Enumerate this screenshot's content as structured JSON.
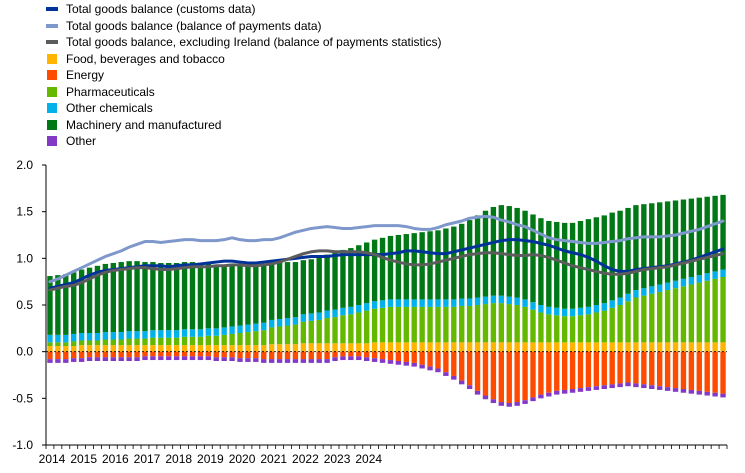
{
  "chart_data": {
    "type": "bar",
    "stacked": true,
    "x_labels": [
      "2014",
      "2015",
      "2016",
      "2017",
      "2018",
      "2019",
      "2020",
      "2021",
      "2022",
      "2023",
      "2024"
    ],
    "quarters_per_year": 4,
    "ylim": [
      -1.0,
      2.0
    ],
    "yticks": [
      "2.0",
      "1.5",
      "1.0",
      "0.5",
      "0.0",
      "-0.5",
      "-1.0"
    ],
    "ytick_values": [
      2.0,
      1.5,
      1.0,
      0.5,
      0.0,
      -0.5,
      -1.0
    ],
    "grid": false,
    "legend_position": "top-left",
    "bar_series": [
      {
        "name": "Food, beverages and tobacco",
        "color": "#ffb400",
        "values": [
          0.06,
          0.06,
          0.06,
          0.06,
          0.07,
          0.07,
          0.07,
          0.07,
          0.07,
          0.07,
          0.07,
          0.07,
          0.07,
          0.07,
          0.07,
          0.07,
          0.07,
          0.07,
          0.07,
          0.07,
          0.07,
          0.07,
          0.07,
          0.07,
          0.07,
          0.07,
          0.07,
          0.07,
          0.08,
          0.08,
          0.08,
          0.08,
          0.09,
          0.09,
          0.09,
          0.09,
          0.09,
          0.09,
          0.09,
          0.09,
          0.09,
          0.1,
          0.1,
          0.1,
          0.1,
          0.1,
          0.1,
          0.1,
          0.1,
          0.1,
          0.1,
          0.1,
          0.1,
          0.1,
          0.1,
          0.1,
          0.1,
          0.1,
          0.1,
          0.1,
          0.1,
          0.1,
          0.1,
          0.1,
          0.1,
          0.1,
          0.1,
          0.1,
          0.1,
          0.1,
          0.1,
          0.1,
          0.1,
          0.1,
          0.1,
          0.1,
          0.1,
          0.1,
          0.1,
          0.1,
          0.1,
          0.1,
          0.1,
          0.1,
          0.1,
          0.1
        ]
      },
      {
        "name": "Energy",
        "color": "#ff4b00",
        "values": [
          -0.08,
          -0.08,
          -0.08,
          -0.07,
          -0.07,
          -0.06,
          -0.06,
          -0.06,
          -0.06,
          -0.06,
          -0.06,
          -0.06,
          -0.05,
          -0.05,
          -0.05,
          -0.05,
          -0.05,
          -0.05,
          -0.05,
          -0.05,
          -0.05,
          -0.06,
          -0.06,
          -0.06,
          -0.07,
          -0.07,
          -0.07,
          -0.08,
          -0.08,
          -0.08,
          -0.08,
          -0.08,
          -0.08,
          -0.08,
          -0.08,
          -0.08,
          -0.06,
          -0.05,
          -0.05,
          -0.05,
          -0.06,
          -0.07,
          -0.08,
          -0.09,
          -0.1,
          -0.11,
          -0.12,
          -0.14,
          -0.16,
          -0.18,
          -0.22,
          -0.26,
          -0.31,
          -0.36,
          -0.42,
          -0.47,
          -0.51,
          -0.54,
          -0.55,
          -0.54,
          -0.52,
          -0.49,
          -0.46,
          -0.44,
          -0.42,
          -0.41,
          -0.4,
          -0.39,
          -0.38,
          -0.37,
          -0.36,
          -0.35,
          -0.34,
          -0.33,
          -0.34,
          -0.35,
          -0.36,
          -0.37,
          -0.38,
          -0.39,
          -0.4,
          -0.41,
          -0.42,
          -0.43,
          -0.44,
          -0.45
        ]
      },
      {
        "name": "Pharmaceuticals",
        "color": "#65b800",
        "values": [
          0.04,
          0.04,
          0.04,
          0.05,
          0.05,
          0.05,
          0.05,
          0.06,
          0.06,
          0.06,
          0.07,
          0.07,
          0.07,
          0.08,
          0.08,
          0.08,
          0.08,
          0.09,
          0.09,
          0.09,
          0.1,
          0.1,
          0.11,
          0.12,
          0.13,
          0.14,
          0.15,
          0.16,
          0.18,
          0.19,
          0.2,
          0.21,
          0.23,
          0.24,
          0.25,
          0.27,
          0.28,
          0.3,
          0.31,
          0.33,
          0.35,
          0.36,
          0.37,
          0.38,
          0.38,
          0.38,
          0.38,
          0.38,
          0.38,
          0.38,
          0.38,
          0.38,
          0.39,
          0.39,
          0.4,
          0.41,
          0.42,
          0.42,
          0.41,
          0.4,
          0.38,
          0.35,
          0.32,
          0.3,
          0.29,
          0.28,
          0.28,
          0.29,
          0.3,
          0.32,
          0.34,
          0.37,
          0.4,
          0.44,
          0.48,
          0.5,
          0.52,
          0.54,
          0.56,
          0.58,
          0.6,
          0.62,
          0.64,
          0.66,
          0.68,
          0.7
        ]
      },
      {
        "name": "Other chemicals",
        "color": "#00b1ea",
        "values": [
          0.08,
          0.08,
          0.08,
          0.08,
          0.08,
          0.08,
          0.08,
          0.08,
          0.08,
          0.08,
          0.08,
          0.08,
          0.08,
          0.08,
          0.08,
          0.08,
          0.08,
          0.08,
          0.08,
          0.08,
          0.08,
          0.08,
          0.08,
          0.08,
          0.08,
          0.08,
          0.08,
          0.08,
          0.08,
          0.08,
          0.08,
          0.08,
          0.08,
          0.08,
          0.08,
          0.08,
          0.08,
          0.08,
          0.08,
          0.08,
          0.08,
          0.08,
          0.08,
          0.08,
          0.08,
          0.08,
          0.08,
          0.08,
          0.08,
          0.08,
          0.08,
          0.08,
          0.08,
          0.08,
          0.08,
          0.08,
          0.08,
          0.08,
          0.08,
          0.08,
          0.08,
          0.08,
          0.08,
          0.08,
          0.08,
          0.08,
          0.08,
          0.08,
          0.08,
          0.08,
          0.08,
          0.08,
          0.08,
          0.08,
          0.08,
          0.08,
          0.08,
          0.08,
          0.08,
          0.08,
          0.08,
          0.08,
          0.08,
          0.08,
          0.08,
          0.08
        ]
      },
      {
        "name": "Machinery and manufactured",
        "color": "#007816",
        "values": [
          0.63,
          0.64,
          0.65,
          0.66,
          0.68,
          0.7,
          0.72,
          0.73,
          0.74,
          0.75,
          0.75,
          0.75,
          0.74,
          0.73,
          0.72,
          0.72,
          0.72,
          0.72,
          0.72,
          0.71,
          0.7,
          0.68,
          0.66,
          0.65,
          0.64,
          0.63,
          0.63,
          0.63,
          0.62,
          0.61,
          0.6,
          0.59,
          0.58,
          0.58,
          0.59,
          0.6,
          0.61,
          0.62,
          0.63,
          0.64,
          0.65,
          0.66,
          0.67,
          0.68,
          0.69,
          0.7,
          0.71,
          0.72,
          0.73,
          0.74,
          0.76,
          0.78,
          0.8,
          0.84,
          0.88,
          0.92,
          0.95,
          0.97,
          0.97,
          0.96,
          0.95,
          0.94,
          0.93,
          0.92,
          0.92,
          0.92,
          0.92,
          0.93,
          0.94,
          0.94,
          0.94,
          0.94,
          0.93,
          0.92,
          0.91,
          0.9,
          0.89,
          0.88,
          0.87,
          0.86,
          0.85,
          0.84,
          0.83,
          0.82,
          0.81,
          0.8
        ]
      },
      {
        "name": "Other",
        "color": "#8139c6",
        "values": [
          -0.04,
          -0.04,
          -0.04,
          -0.04,
          -0.04,
          -0.04,
          -0.04,
          -0.04,
          -0.04,
          -0.04,
          -0.04,
          -0.04,
          -0.04,
          -0.04,
          -0.04,
          -0.04,
          -0.04,
          -0.04,
          -0.04,
          -0.04,
          -0.04,
          -0.04,
          -0.04,
          -0.04,
          -0.04,
          -0.04,
          -0.04,
          -0.04,
          -0.04,
          -0.04,
          -0.04,
          -0.04,
          -0.04,
          -0.04,
          -0.04,
          -0.04,
          -0.04,
          -0.04,
          -0.04,
          -0.04,
          -0.04,
          -0.04,
          -0.04,
          -0.04,
          -0.04,
          -0.04,
          -0.04,
          -0.04,
          -0.04,
          -0.04,
          -0.04,
          -0.04,
          -0.04,
          -0.04,
          -0.04,
          -0.04,
          -0.04,
          -0.04,
          -0.04,
          -0.04,
          -0.04,
          -0.04,
          -0.04,
          -0.04,
          -0.04,
          -0.04,
          -0.04,
          -0.04,
          -0.04,
          -0.04,
          -0.04,
          -0.04,
          -0.04,
          -0.04,
          -0.04,
          -0.04,
          -0.04,
          -0.04,
          -0.04,
          -0.04,
          -0.04,
          -0.04,
          -0.04,
          -0.04,
          -0.04,
          -0.04
        ]
      }
    ],
    "line_series": [
      {
        "name": "Total goods balance (customs data)",
        "color": "#003299",
        "values": [
          0.68,
          0.7,
          0.72,
          0.74,
          0.78,
          0.82,
          0.85,
          0.87,
          0.88,
          0.89,
          0.9,
          0.91,
          0.92,
          0.92,
          0.92,
          0.91,
          0.92,
          0.93,
          0.93,
          0.94,
          0.95,
          0.96,
          0.97,
          0.97,
          0.96,
          0.95,
          0.95,
          0.96,
          0.97,
          0.98,
          0.99,
          1.0,
          1.01,
          1.02,
          1.02,
          1.02,
          1.03,
          1.04,
          1.04,
          1.04,
          1.04,
          1.04,
          1.04,
          1.05,
          1.06,
          1.08,
          1.08,
          1.07,
          1.06,
          1.05,
          1.05,
          1.07,
          1.09,
          1.11,
          1.13,
          1.15,
          1.17,
          1.19,
          1.2,
          1.2,
          1.19,
          1.18,
          1.16,
          1.14,
          1.11,
          1.08,
          1.06,
          1.04,
          1.01,
          0.97,
          0.92,
          0.88,
          0.86,
          0.86,
          0.88,
          0.89,
          0.9,
          0.91,
          0.92,
          0.94,
          0.96,
          0.98,
          1.01,
          1.04,
          1.07,
          1.1
        ]
      },
      {
        "name": "Total goods balance (balance of payments data)",
        "color": "#7f98cc",
        "values": [
          0.75,
          0.78,
          0.82,
          0.86,
          0.9,
          0.94,
          0.98,
          1.02,
          1.05,
          1.08,
          1.12,
          1.15,
          1.18,
          1.18,
          1.17,
          1.18,
          1.19,
          1.2,
          1.2,
          1.19,
          1.19,
          1.19,
          1.2,
          1.22,
          1.2,
          1.19,
          1.19,
          1.2,
          1.2,
          1.22,
          1.25,
          1.28,
          1.3,
          1.32,
          1.33,
          1.34,
          1.33,
          1.32,
          1.32,
          1.33,
          1.34,
          1.35,
          1.35,
          1.35,
          1.35,
          1.34,
          1.32,
          1.31,
          1.31,
          1.33,
          1.36,
          1.38,
          1.4,
          1.43,
          1.44,
          1.45,
          1.44,
          1.41,
          1.39,
          1.36,
          1.34,
          1.3,
          1.26,
          1.22,
          1.2,
          1.19,
          1.18,
          1.17,
          1.16,
          1.16,
          1.17,
          1.18,
          1.19,
          1.21,
          1.22,
          1.23,
          1.23,
          1.23,
          1.24,
          1.25,
          1.27,
          1.29,
          1.31,
          1.34,
          1.37,
          1.4
        ]
      },
      {
        "name": "Total goods balance, excluding Ireland (balance of payments statistics)",
        "color": "#5c5c5c",
        "values": [
          0.66,
          0.68,
          0.7,
          0.71,
          0.74,
          0.78,
          0.82,
          0.85,
          0.87,
          0.88,
          0.89,
          0.9,
          0.9,
          0.89,
          0.88,
          0.88,
          0.89,
          0.9,
          0.91,
          0.91,
          0.91,
          0.92,
          0.92,
          0.93,
          0.93,
          0.92,
          0.92,
          0.93,
          0.94,
          0.96,
          0.99,
          1.02,
          1.05,
          1.07,
          1.08,
          1.08,
          1.07,
          1.07,
          1.07,
          1.07,
          1.06,
          1.04,
          1.01,
          0.98,
          0.96,
          0.94,
          0.93,
          0.93,
          0.94,
          0.96,
          0.98,
          1.0,
          1.02,
          1.04,
          1.05,
          1.06,
          1.06,
          1.05,
          1.04,
          1.03,
          1.03,
          1.04,
          1.03,
          1.01,
          0.98,
          0.95,
          0.92,
          0.9,
          0.88,
          0.86,
          0.84,
          0.83,
          0.83,
          0.84,
          0.86,
          0.88,
          0.89,
          0.9,
          0.91,
          0.93,
          0.95,
          0.97,
          0.99,
          1.01,
          1.03,
          1.05
        ]
      }
    ]
  }
}
